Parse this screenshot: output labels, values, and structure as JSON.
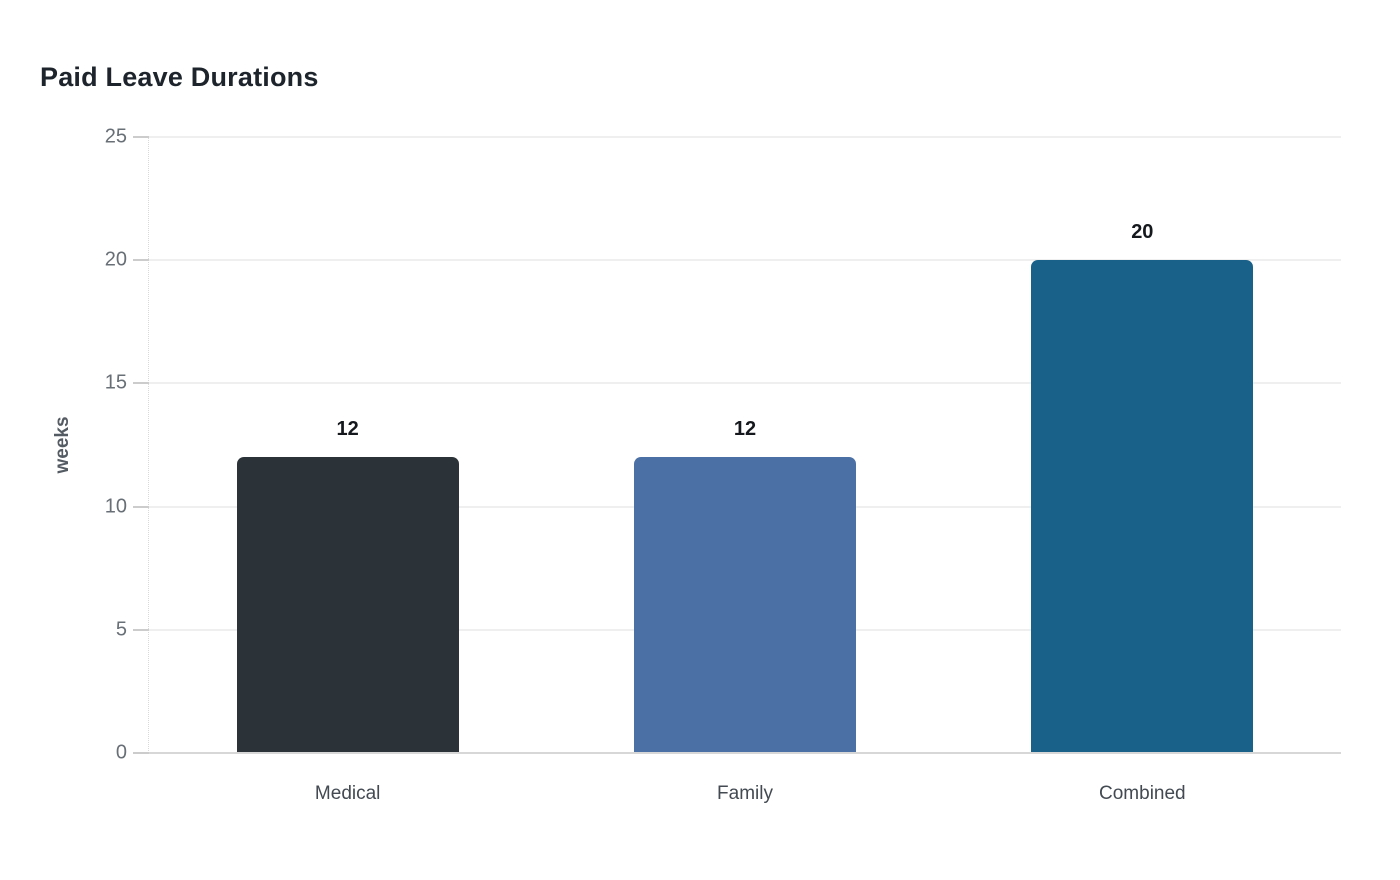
{
  "chart_data": {
    "type": "bar",
    "title": "Paid Leave Durations",
    "xlabel": "",
    "ylabel": "weeks",
    "categories": [
      "Medical",
      "Family",
      "Combined"
    ],
    "values": [
      12,
      12,
      20
    ],
    "value_labels": [
      "12",
      "12",
      "20"
    ],
    "bar_colors": [
      "#2c3338",
      "#4b70a6",
      "#1a618a"
    ],
    "ylim": [
      0,
      25
    ],
    "yticks": [
      0,
      5,
      10,
      15,
      20,
      25
    ],
    "grid": "horizontal-only",
    "legend": "none",
    "background_color": "#ffffff",
    "gridline_color": "#efefef",
    "baseline_color": "#d7d7d7",
    "tick_label_color": "#686f76",
    "category_label_color": "#434a52",
    "title_color": "#1d242b",
    "value_label_color": "#15191d"
  }
}
